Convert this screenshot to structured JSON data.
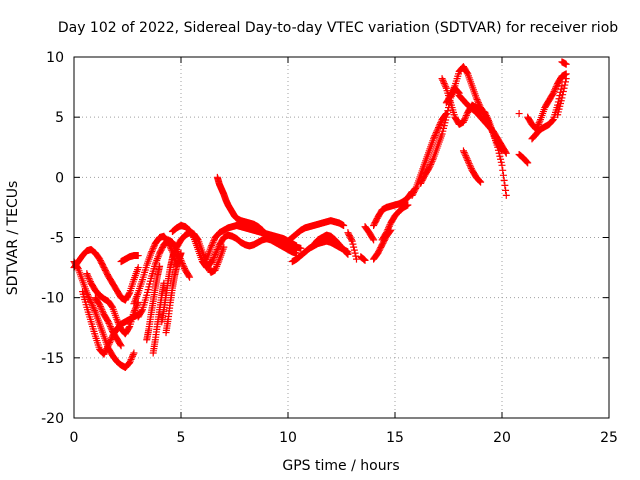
{
  "chart_data": {
    "type": "scatter",
    "title": "Day 102 of 2022, Sidereal Day-to-day VTEC variation (SDTVAR) for receiver riob",
    "xlabel": "GPS time / hours",
    "ylabel": "SDTVAR / TECUs",
    "xlim": [
      0,
      25
    ],
    "ylim": [
      -20,
      10
    ],
    "xticks": [
      0,
      5,
      10,
      15,
      20,
      25
    ],
    "yticks": [
      -20,
      -15,
      -10,
      -5,
      0,
      5,
      10
    ],
    "grid": true,
    "marker": "plus",
    "color": "#ff0000",
    "series": [
      {
        "name": "",
        "traces": [
          {
            "x": [
              0.0,
              0.2,
              0.4,
              0.6,
              0.8,
              1.0,
              1.2,
              1.4,
              1.6,
              1.8,
              2.0,
              2.2,
              2.4,
              2.6,
              2.8,
              3.0
            ],
            "y": [
              -7.5,
              -7.0,
              -6.5,
              -6.1,
              -6.0,
              -6.3,
              -6.8,
              -7.5,
              -8.2,
              -8.8,
              -9.4,
              -10.0,
              -10.2,
              -9.6,
              -8.5,
              -7.5
            ]
          },
          {
            "x": [
              0.0,
              0.2,
              0.4,
              0.6,
              0.8,
              1.0,
              1.2,
              1.4,
              1.6,
              1.8,
              2.0,
              2.2,
              2.4,
              2.6,
              2.8
            ],
            "y": [
              -7.0,
              -7.6,
              -8.6,
              -9.6,
              -10.4,
              -11.2,
              -12.2,
              -13.2,
              -14.2,
              -14.8,
              -15.3,
              -15.6,
              -15.8,
              -15.4,
              -14.6
            ]
          },
          {
            "x": [
              0.4,
              0.6,
              0.8,
              1.0,
              1.2,
              1.4,
              1.6,
              1.8,
              2.0,
              2.2,
              2.4,
              2.6,
              2.8,
              3.0
            ],
            "y": [
              -9.5,
              -10.8,
              -12.0,
              -13.2,
              -14.3,
              -14.7,
              -14.0,
              -13.2,
              -12.6,
              -12.2,
              -12.0,
              -11.8,
              -11.6,
              -11.4
            ]
          },
          {
            "x": [
              0.6,
              0.8,
              1.0,
              1.2,
              1.4,
              1.6,
              1.8,
              2.0,
              2.2,
              2.4,
              2.6,
              2.8,
              3.0
            ],
            "y": [
              -8.0,
              -8.8,
              -9.4,
              -9.8,
              -10.1,
              -10.3,
              -10.8,
              -11.8,
              -12.6,
              -13.0,
              -12.4,
              -11.2,
              -10.4
            ]
          },
          {
            "x": [
              1.0,
              1.2,
              1.4,
              1.6,
              1.8,
              2.0,
              2.2
            ],
            "y": [
              -10.0,
              -10.6,
              -11.4,
              -12.0,
              -12.8,
              -13.4,
              -14.0
            ]
          },
          {
            "x": [
              2.2,
              2.4,
              2.6,
              2.8,
              3.0
            ],
            "y": [
              -7.0,
              -6.8,
              -6.6,
              -6.5,
              -6.5
            ]
          },
          {
            "x": [
              2.8,
              3.0,
              3.2,
              3.4,
              3.6,
              3.8,
              4.0,
              4.2,
              4.4,
              4.6,
              4.8
            ],
            "y": [
              -10.5,
              -9.6,
              -8.5,
              -7.3,
              -6.3,
              -5.5,
              -5.0,
              -4.9,
              -5.4,
              -6.2,
              -7.3
            ]
          },
          {
            "x": [
              3.0,
              3.2,
              3.4,
              3.6,
              3.8,
              4.0,
              4.2,
              4.4,
              4.6,
              4.8,
              5.0,
              5.2,
              5.4
            ],
            "y": [
              -11.6,
              -11.0,
              -9.8,
              -8.4,
              -7.2,
              -6.3,
              -5.6,
              -5.2,
              -5.4,
              -6.0,
              -6.9,
              -7.7,
              -8.3
            ]
          },
          {
            "x": [
              3.4,
              3.5,
              3.6,
              3.7,
              3.8,
              3.9,
              4.0
            ],
            "y": [
              -13.5,
              -12.6,
              -11.4,
              -10.3,
              -9.2,
              -8.2,
              -7.4
            ]
          },
          {
            "x": [
              3.7,
              3.8,
              3.9,
              4.0,
              4.1,
              4.2
            ],
            "y": [
              -14.6,
              -13.5,
              -12.2,
              -11.0,
              -9.8,
              -8.8
            ]
          },
          {
            "x": [
              4.1,
              4.2,
              4.3,
              4.4,
              4.5,
              4.6,
              4.7
            ],
            "y": [
              -12.0,
              -11.0,
              -9.8,
              -8.6,
              -7.5,
              -6.7,
              -6.1
            ]
          },
          {
            "x": [
              4.3,
              4.4,
              4.5,
              4.6,
              4.7,
              4.8,
              4.9,
              5.0
            ],
            "y": [
              -12.9,
              -11.8,
              -10.4,
              -9.2,
              -8.2,
              -7.4,
              -6.8,
              -6.3
            ]
          },
          {
            "x": [
              4.6,
              4.8,
              5.0,
              5.2,
              5.4,
              5.6,
              5.8,
              6.0,
              6.2,
              6.4
            ],
            "y": [
              -4.5,
              -4.2,
              -4.0,
              -4.1,
              -4.4,
              -5.0,
              -6.0,
              -7.0,
              -7.5,
              -7.0
            ]
          },
          {
            "x": [
              4.8,
              5.0,
              5.2,
              5.4,
              5.6,
              5.8,
              6.0,
              6.2,
              6.4,
              6.6,
              6.8,
              7.0
            ],
            "y": [
              -5.8,
              -5.2,
              -4.8,
              -4.6,
              -4.7,
              -5.2,
              -6.2,
              -7.2,
              -7.9,
              -7.7,
              -6.8,
              -5.8
            ]
          },
          {
            "x": [
              6.2,
              6.4,
              6.6,
              6.8,
              7.0,
              7.2,
              7.4,
              7.6,
              7.8,
              8.0,
              8.2,
              8.4,
              8.6,
              8.8,
              9.0,
              9.2,
              9.4,
              9.6,
              9.8,
              10.0,
              10.2,
              10.4
            ],
            "y": [
              -6.8,
              -5.8,
              -5.0,
              -4.6,
              -4.4,
              -4.2,
              -4.1,
              -4.0,
              -4.1,
              -4.2,
              -4.3,
              -4.4,
              -4.5,
              -4.6,
              -4.7,
              -4.8,
              -4.9,
              -5.0,
              -5.1,
              -5.3,
              -5.5,
              -5.7
            ]
          },
          {
            "x": [
              6.4,
              6.6,
              6.8,
              7.0,
              7.2,
              7.4,
              7.6,
              7.8,
              8.0,
              8.2,
              8.4,
              8.6,
              8.8,
              9.0,
              9.2,
              9.4,
              9.6,
              9.8,
              10.0,
              10.2,
              10.4
            ],
            "y": [
              -7.2,
              -6.4,
              -5.6,
              -5.0,
              -4.8,
              -4.9,
              -5.1,
              -5.4,
              -5.6,
              -5.7,
              -5.6,
              -5.4,
              -5.2,
              -5.1,
              -5.2,
              -5.4,
              -5.6,
              -5.8,
              -6.0,
              -6.2,
              -6.3
            ]
          },
          {
            "x": [
              6.7,
              6.8,
              6.9,
              7.0,
              7.1,
              7.2,
              7.3,
              7.4,
              7.5,
              7.6,
              7.8,
              8.0,
              8.2,
              8.4,
              8.6,
              8.8,
              9.0,
              9.2,
              9.4,
              9.6,
              9.8,
              10.0,
              10.2,
              10.4,
              10.6
            ],
            "y": [
              0.0,
              -0.6,
              -1.0,
              -1.4,
              -1.9,
              -2.3,
              -2.6,
              -2.9,
              -3.2,
              -3.4,
              -3.6,
              -3.7,
              -3.8,
              -3.9,
              -4.1,
              -4.4,
              -4.8,
              -5.1,
              -5.3,
              -5.4,
              -5.5,
              -5.6,
              -5.7,
              -5.8,
              -5.9
            ]
          },
          {
            "x": [
              10.0,
              10.2,
              10.4,
              10.6,
              10.8,
              11.0,
              11.2,
              11.4,
              11.6,
              11.8,
              12.0,
              12.2,
              12.4,
              12.6
            ],
            "y": [
              -5.3,
              -5.0,
              -4.7,
              -4.4,
              -4.2,
              -4.1,
              -4.0,
              -3.9,
              -3.8,
              -3.7,
              -3.6,
              -3.7,
              -3.8,
              -4.0
            ]
          },
          {
            "x": [
              10.2,
              10.4,
              10.6,
              10.8,
              11.0,
              11.2,
              11.4,
              11.6,
              11.8,
              12.0,
              12.2,
              12.4,
              12.6,
              12.8
            ],
            "y": [
              -7.0,
              -6.8,
              -6.5,
              -6.2,
              -5.9,
              -5.7,
              -5.5,
              -5.4,
              -5.3,
              -5.4,
              -5.6,
              -5.8,
              -6.0,
              -6.2
            ]
          },
          {
            "x": [
              11.2,
              11.4,
              11.6,
              11.8,
              12.0,
              12.2,
              12.4,
              12.6,
              12.8
            ],
            "y": [
              -5.6,
              -5.2,
              -5.0,
              -4.8,
              -4.9,
              -5.2,
              -5.6,
              -6.0,
              -6.4
            ]
          },
          {
            "x": [
              12.8,
              13.0,
              13.2
            ],
            "y": [
              -4.6,
              -5.3,
              -6.8
            ]
          },
          {
            "x": [
              13.6,
              13.8,
              14.0
            ],
            "y": [
              -4.1,
              -4.6,
              -5.2
            ]
          },
          {
            "x": [
              13.4,
              13.6
            ],
            "y": [
              -6.6,
              -6.9
            ]
          },
          {
            "x": [
              14.0,
              14.2,
              14.4,
              14.6,
              14.8,
              15.0,
              15.2,
              15.4,
              15.6,
              15.8
            ],
            "y": [
              -4.0,
              -3.3,
              -2.7,
              -2.5,
              -2.4,
              -2.3,
              -2.2,
              -2.0,
              -1.7,
              -1.2
            ]
          },
          {
            "x": [
              14.0,
              14.2,
              14.4,
              14.6,
              14.8
            ],
            "y": [
              -6.8,
              -6.3,
              -5.6,
              -4.9,
              -4.4
            ]
          },
          {
            "x": [
              14.4,
              14.6,
              14.8,
              15.0,
              15.2,
              15.4,
              15.6
            ],
            "y": [
              -5.2,
              -4.6,
              -3.8,
              -3.2,
              -2.8,
              -2.5,
              -2.3
            ]
          },
          {
            "x": [
              15.8,
              16.0,
              16.2,
              16.4,
              16.6,
              16.8,
              17.0,
              17.2,
              17.4
            ],
            "y": [
              -1.5,
              -0.8,
              0.2,
              1.2,
              2.2,
              3.2,
              4.0,
              4.8,
              5.3
            ]
          },
          {
            "x": [
              16.2,
              16.4,
              16.6,
              16.8,
              17.0,
              17.2,
              17.4,
              17.6,
              17.8,
              18.0
            ],
            "y": [
              -0.5,
              0.2,
              0.8,
              1.6,
              2.6,
              3.6,
              5.0,
              6.6,
              7.4,
              7.0
            ]
          },
          {
            "x": [
              17.2,
              17.4,
              17.6,
              17.8,
              18.0,
              18.2,
              18.4,
              18.6,
              18.8,
              19.0,
              19.2,
              19.4,
              19.6,
              19.8,
              20.0,
              20.2
            ],
            "y": [
              8.2,
              7.4,
              6.2,
              5.0,
              4.4,
              4.6,
              5.4,
              6.0,
              5.8,
              5.6,
              5.4,
              4.6,
              3.6,
              2.5,
              1.0,
              -1.5
            ]
          },
          {
            "x": [
              17.4,
              17.6,
              17.8,
              18.0,
              18.2,
              18.4,
              18.6,
              18.8,
              19.0,
              19.2,
              19.4,
              19.6,
              19.8,
              20.0
            ],
            "y": [
              6.2,
              6.8,
              7.6,
              8.8,
              9.2,
              8.6,
              7.6,
              6.6,
              5.8,
              5.2,
              4.4,
              3.6,
              2.8,
              2.2
            ]
          },
          {
            "x": [
              18.0,
              18.2,
              18.4,
              18.6,
              18.8,
              19.0,
              19.2,
              19.4,
              19.6,
              19.8,
              20.0,
              20.2
            ],
            "y": [
              6.8,
              6.4,
              6.0,
              5.7,
              5.4,
              5.0,
              4.6,
              4.2,
              3.8,
              3.2,
              2.6,
              2.0
            ]
          },
          {
            "x": [
              18.2,
              18.4,
              18.6,
              18.8,
              19.0
            ],
            "y": [
              2.2,
              1.4,
              0.6,
              0.0,
              -0.4
            ]
          },
          {
            "x": [
              20.8,
              21.0,
              21.2
            ],
            "y": [
              1.9,
              1.6,
              1.2
            ]
          },
          {
            "x": [
              20.8
            ],
            "y": [
              5.3
            ]
          },
          {
            "x": [
              21.2,
              21.4,
              21.6,
              21.8,
              22.0,
              22.2,
              22.4,
              22.6,
              22.8,
              23.0
            ],
            "y": [
              5.0,
              4.4,
              4.0,
              4.8,
              5.8,
              6.4,
              7.0,
              7.8,
              8.4,
              8.6
            ]
          },
          {
            "x": [
              21.4,
              21.6,
              21.8,
              22.0,
              22.2,
              22.4,
              22.6,
              22.8
            ],
            "y": [
              3.2,
              3.6,
              4.0,
              4.2,
              4.4,
              4.8,
              6.0,
              7.6
            ]
          },
          {
            "x": [
              22.6,
              22.8,
              23.0
            ],
            "y": [
              5.2,
              6.6,
              8.2
            ]
          },
          {
            "x": [
              22.8,
              23.0
            ],
            "y": [
              9.6,
              9.4
            ]
          }
        ]
      }
    ]
  }
}
